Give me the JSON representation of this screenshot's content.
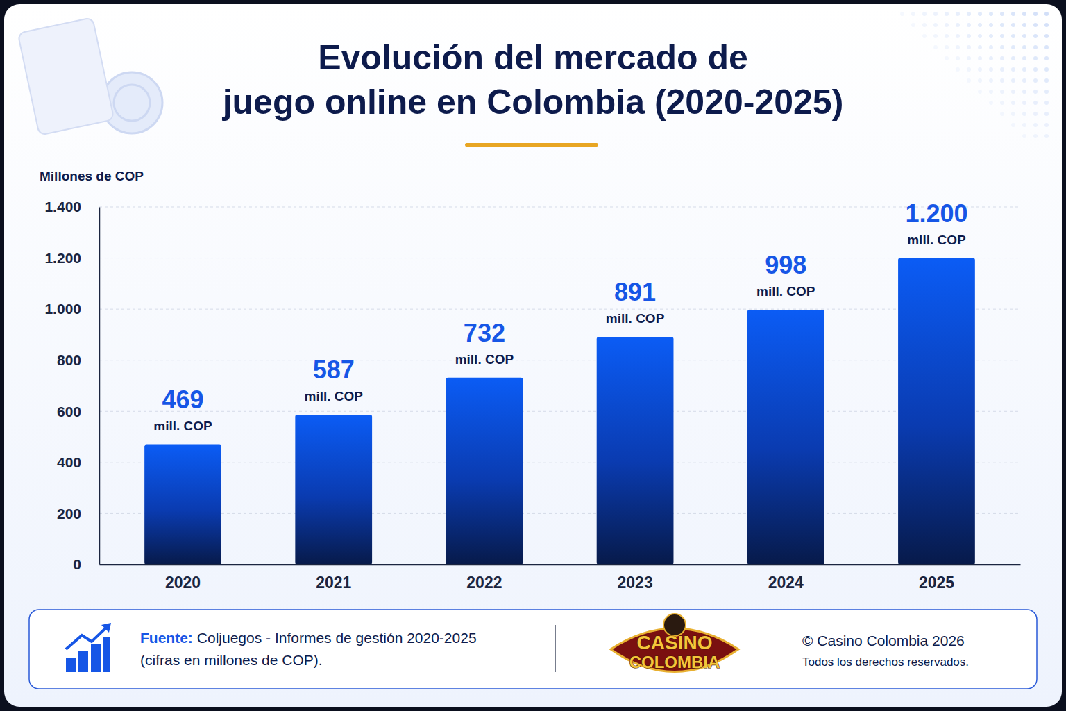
{
  "chart_data": {
    "type": "bar",
    "title": "Evolución del mercado de\njuego online en Colombia (2020-2025)",
    "y_label": "Millones de COP",
    "categories": [
      "2020",
      "2021",
      "2022",
      "2023",
      "2024",
      "2025"
    ],
    "values": [
      469,
      587,
      732,
      891,
      998,
      1200
    ],
    "value_labels": [
      "469 mill. COP",
      "587 mill. COP",
      "732 mill. COP",
      "891 mill. COP",
      "998 mill. COP",
      "1.200 mill. COP"
    ],
    "color": "#0b5cf5",
    "data_labels": true,
    "ylim": [
      0,
      1400
    ],
    "yticks": [
      0,
      200,
      400,
      600,
      800,
      {
        "value": 1000,
        "label": "1.000"
      },
      {
        "value": 1200,
        "label": "1.200"
      },
      {
        "value": 1400,
        "label": "1.400"
      }
    ],
    "grid": true
  },
  "footer": {
    "source_label": "Fuente:",
    "source_lines": [
      "Coljuegos - Informes de gestión 2020-2025",
      "(cifras en millones de COP)."
    ],
    "logo": [
      "CASINO",
      "COLOMBIA"
    ],
    "copyright": "© Casino Colombia 2026",
    "rights": "Todos los derechos reservados."
  }
}
